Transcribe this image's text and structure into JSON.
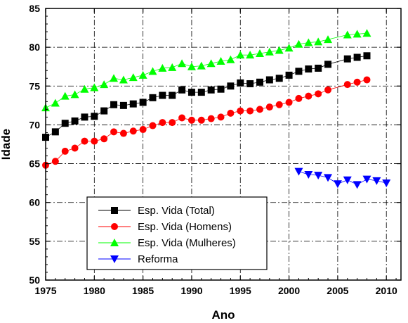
{
  "chart_data": {
    "type": "line",
    "xlabel": "Ano",
    "ylabel": "Idade",
    "xlim": [
      1975,
      2011.5
    ],
    "ylim": [
      50,
      85
    ],
    "xticks": [
      1975,
      1980,
      1985,
      1990,
      1995,
      2000,
      2005,
      2010
    ],
    "yticks": [
      50,
      55,
      60,
      65,
      70,
      75,
      80,
      85
    ],
    "grid": true,
    "legend_position": "bottom-left",
    "series": [
      {
        "name": "Esp. Vida (Total)",
        "color": "#000000",
        "marker": "square",
        "x": [
          1975,
          1976,
          1977,
          1978,
          1979,
          1980,
          1981,
          1982,
          1983,
          1984,
          1985,
          1986,
          1987,
          1988,
          1989,
          1990,
          1991,
          1992,
          1993,
          1994,
          1995,
          1996,
          1997,
          1998,
          1999,
          2000,
          2001,
          2002,
          2003,
          2004,
          2006,
          2007,
          2008
        ],
        "y": [
          68.4,
          69.1,
          70.2,
          70.5,
          71.0,
          71.1,
          71.8,
          72.6,
          72.5,
          72.7,
          72.9,
          73.5,
          73.8,
          73.8,
          74.5,
          74.2,
          74.2,
          74.5,
          74.6,
          75.0,
          75.4,
          75.3,
          75.5,
          75.8,
          76.0,
          76.4,
          76.9,
          77.2,
          77.3,
          77.8,
          78.5,
          78.7,
          78.9
        ]
      },
      {
        "name": "Esp. Vida (Homens)",
        "color": "#ff0000",
        "marker": "circle",
        "x": [
          1975,
          1976,
          1977,
          1978,
          1979,
          1980,
          1981,
          1982,
          1983,
          1984,
          1985,
          1986,
          1987,
          1988,
          1989,
          1990,
          1991,
          1992,
          1993,
          1994,
          1995,
          1996,
          1997,
          1998,
          1999,
          2000,
          2001,
          2002,
          2003,
          2004,
          2006,
          2007,
          2008
        ],
        "y": [
          64.8,
          65.3,
          66.6,
          67.0,
          67.9,
          67.9,
          68.2,
          69.1,
          68.9,
          69.2,
          69.4,
          69.9,
          70.3,
          70.3,
          70.9,
          70.6,
          70.6,
          70.8,
          71.0,
          71.5,
          71.8,
          71.8,
          72.0,
          72.3,
          72.6,
          72.9,
          73.4,
          73.7,
          74.0,
          74.5,
          75.2,
          75.5,
          75.8
        ]
      },
      {
        "name": "Esp. Vida (Mulheres)",
        "color": "#00ff00",
        "marker": "triangle-up",
        "x": [
          1975,
          1976,
          1977,
          1978,
          1979,
          1980,
          1981,
          1982,
          1983,
          1984,
          1985,
          1986,
          1987,
          1988,
          1989,
          1990,
          1991,
          1992,
          1993,
          1994,
          1995,
          1996,
          1997,
          1998,
          1999,
          2000,
          2001,
          2002,
          2003,
          2004,
          2006,
          2007,
          2008
        ],
        "y": [
          72.2,
          72.8,
          73.7,
          73.9,
          74.6,
          74.8,
          75.2,
          76.0,
          75.8,
          76.1,
          76.4,
          76.9,
          77.3,
          77.4,
          77.9,
          77.5,
          77.6,
          77.9,
          78.2,
          78.4,
          79.0,
          79.0,
          79.2,
          79.4,
          79.6,
          79.9,
          80.4,
          80.6,
          80.7,
          81.0,
          81.6,
          81.7,
          81.8
        ]
      },
      {
        "name": "Reforma",
        "color": "#0000ff",
        "marker": "triangle-down",
        "x": [
          2001,
          2002,
          2003,
          2004,
          2005,
          2006,
          2007,
          2008,
          2009,
          2010
        ],
        "y": [
          64.0,
          63.6,
          63.5,
          63.2,
          62.4,
          62.9,
          62.3,
          63.0,
          62.8,
          62.5
        ]
      }
    ]
  }
}
